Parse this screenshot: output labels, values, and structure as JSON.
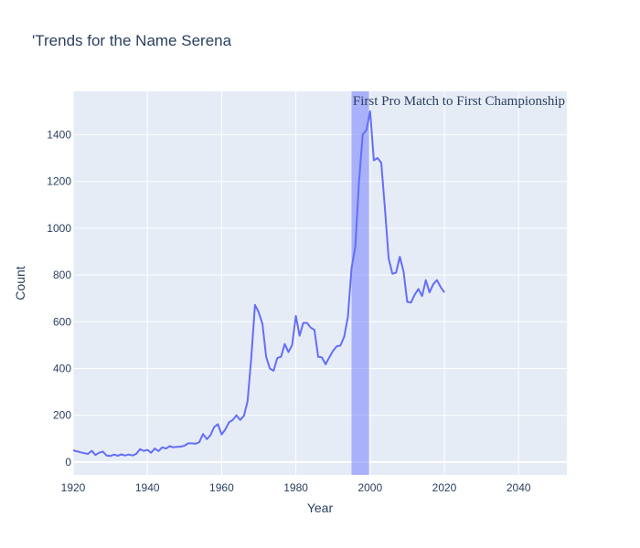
{
  "chart_data": {
    "type": "line",
    "title": "'Trends for the Name Serena",
    "xlabel": "Year",
    "ylabel": "Count",
    "xlim": [
      1920,
      2053
    ],
    "ylim": [
      -55,
      1585
    ],
    "x_ticks": [
      1920,
      1940,
      1960,
      1980,
      2000,
      2020,
      2040
    ],
    "y_ticks": [
      0,
      200,
      400,
      600,
      800,
      1000,
      1200,
      1400
    ],
    "grid": true,
    "colors": {
      "plot_background": "#e5ecf6",
      "grid": "#ffffff",
      "line": "#636efa",
      "highlight": "#6b76fb"
    },
    "highlight_band": {
      "x_start": 1995,
      "x_end": 1999.7,
      "label": "First Pro Match to First Championship"
    },
    "series": [
      {
        "x": [
          1920,
          1921,
          1922,
          1923,
          1924,
          1925,
          1926,
          1927,
          1928,
          1929,
          1930,
          1931,
          1932,
          1933,
          1934,
          1935,
          1936,
          1937,
          1938,
          1939,
          1940,
          1941,
          1942,
          1943,
          1944,
          1945,
          1946,
          1947,
          1948,
          1949,
          1950,
          1951,
          1952,
          1953,
          1954,
          1955,
          1956,
          1957,
          1958,
          1959,
          1960,
          1961,
          1962,
          1963,
          1964,
          1965,
          1966,
          1967,
          1968,
          1969,
          1970,
          1971,
          1972,
          1973,
          1974,
          1975,
          1976,
          1977,
          1978,
          1979,
          1980,
          1981,
          1982,
          1983,
          1984,
          1985,
          1986,
          1987,
          1988,
          1989,
          1990,
          1991,
          1992,
          1993,
          1994,
          1995,
          1996,
          1997,
          1998,
          1999,
          2000,
          2001,
          2002,
          2003,
          2004,
          2005,
          2006,
          2007,
          2008,
          2009,
          2010,
          2011,
          2012,
          2013,
          2014,
          2015,
          2016,
          2017,
          2018,
          2019,
          2020
        ],
        "y": [
          50,
          46,
          42,
          38,
          35,
          48,
          30,
          40,
          45,
          28,
          26,
          32,
          27,
          33,
          28,
          32,
          28,
          35,
          55,
          48,
          52,
          40,
          58,
          47,
          63,
          58,
          68,
          63,
          65,
          66,
          70,
          80,
          80,
          78,
          85,
          120,
          98,
          115,
          150,
          162,
          118,
          140,
          170,
          180,
          200,
          180,
          198,
          260,
          450,
          672,
          640,
          590,
          450,
          400,
          390,
          445,
          450,
          505,
          470,
          500,
          625,
          540,
          595,
          595,
          575,
          565,
          450,
          448,
          418,
          448,
          475,
          495,
          498,
          535,
          620,
          830,
          920,
          1195,
          1400,
          1420,
          1500,
          1290,
          1300,
          1280,
          1080,
          870,
          805,
          810,
          878,
          815,
          685,
          682,
          715,
          740,
          710,
          778,
          725,
          760,
          778,
          748,
          725
        ]
      }
    ]
  }
}
